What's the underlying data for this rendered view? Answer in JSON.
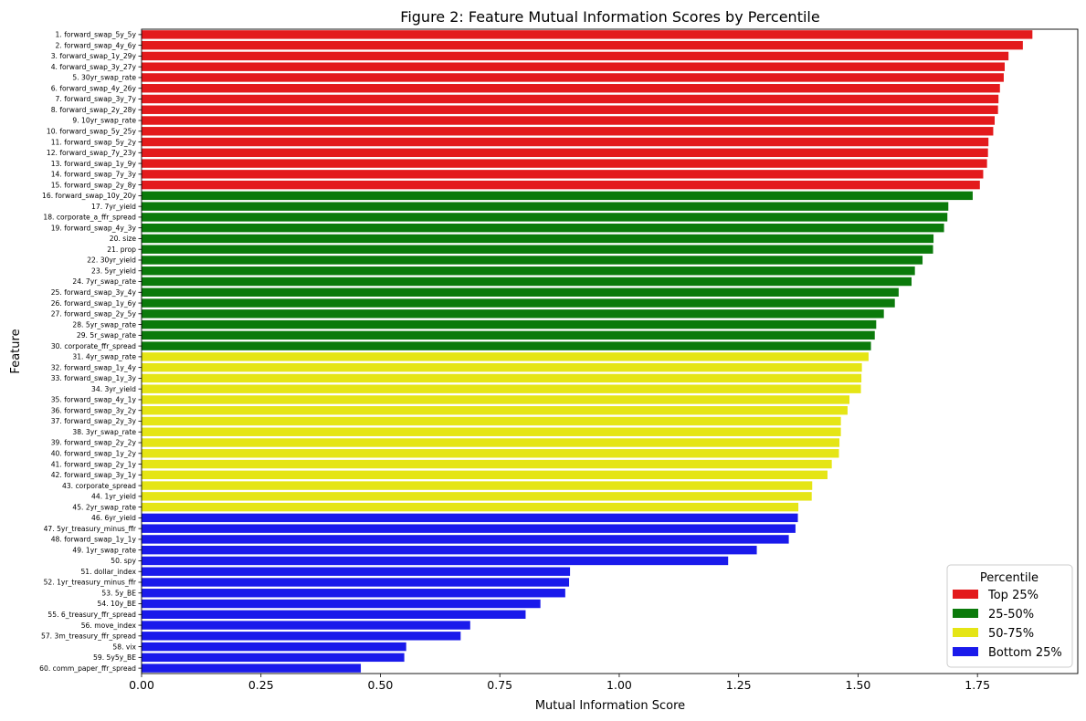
{
  "chart_data": {
    "type": "bar",
    "orientation": "horizontal",
    "title": "Figure 2: Feature Mutual Information Scores by Percentile",
    "xlabel": "Mutual Information Score",
    "ylabel": "Feature",
    "xlim": [
      0,
      1.96
    ],
    "xticks": [
      "0.00",
      "0.25",
      "0.50",
      "0.75",
      "1.00",
      "1.25",
      "1.50",
      "1.75"
    ],
    "grid": false,
    "legend": {
      "title": "Percentile",
      "placement": "bottom-right",
      "entries": [
        {
          "label": "Top 25%",
          "color": "#e31a1c"
        },
        {
          "label": "25-50%",
          "color": "#0b7a0b"
        },
        {
          "label": "50-75%",
          "color": "#e5e515"
        },
        {
          "label": "Bottom 25%",
          "color": "#1a1aeb"
        }
      ]
    },
    "categories": [
      "1. forward_swap_5y_5y",
      "2. forward_swap_4y_6y",
      "3. forward_swap_1y_29y",
      "4. forward_swap_3y_27y",
      "5. 30yr_swap_rate",
      "6. forward_swap_4y_26y",
      "7. forward_swap_3y_7y",
      "8. forward_swap_2y_28y",
      "9. 10yr_swap_rate",
      "10. forward_swap_5y_25y",
      "11. forward_swap_5y_2y",
      "12. forward_swap_7y_23y",
      "13. forward_swap_1y_9y",
      "14. forward_swap_7y_3y",
      "15. forward_swap_2y_8y",
      "16. forward_swap_10y_20y",
      "17. 7yr_yield",
      "18. corporate_a_ffr_spread",
      "19. forward_swap_4y_3y",
      "20. size",
      "21. prop",
      "22. 30yr_yield",
      "23. 5yr_yield",
      "24. 7yr_swap_rate",
      "25. forward_swap_3y_4y",
      "26. forward_swap_1y_6y",
      "27. forward_swap_2y_5y",
      "28. 5yr_swap_rate",
      "29. 5r_swap_rate",
      "30. corporate_ffr_spread",
      "31. 4yr_swap_rate",
      "32. forward_swap_1y_4y",
      "33. forward_swap_1y_3y",
      "34. 3yr_yield",
      "35. forward_swap_4y_1y",
      "36. forward_swap_3y_2y",
      "37. forward_swap_2y_3y",
      "38. 3yr_swap_rate",
      "39. forward_swap_2y_2y",
      "40. forward_swap_1y_2y",
      "41. forward_swap_2y_1y",
      "42. forward_swap_3y_1y",
      "43. corporate_spread",
      "44. 1yr_yield",
      "45. 2yr_swap_rate",
      "46. 6yr_yield",
      "47. 5yr_treasury_minus_ffr",
      "48. forward_swap_1y_1y",
      "49. 1yr_swap_rate",
      "50. spy",
      "51. dollar_index",
      "52. 1yr_treasury_minus_ffr",
      "53. 5y_BE",
      "54. 10y_BE",
      "55. 6_treasury_ffr_spread",
      "56. move_index",
      "57. 3m_treasury_ffr_spread",
      "58. vix",
      "59. 5y5y_BE",
      "60. comm_paper_ffr_spread"
    ],
    "values": [
      1.865,
      1.845,
      1.815,
      1.807,
      1.805,
      1.797,
      1.794,
      1.793,
      1.786,
      1.783,
      1.773,
      1.772,
      1.77,
      1.762,
      1.755,
      1.74,
      1.689,
      1.687,
      1.68,
      1.658,
      1.657,
      1.635,
      1.619,
      1.612,
      1.585,
      1.577,
      1.554,
      1.538,
      1.535,
      1.527,
      1.522,
      1.508,
      1.507,
      1.506,
      1.482,
      1.478,
      1.464,
      1.464,
      1.461,
      1.46,
      1.445,
      1.436,
      1.404,
      1.403,
      1.375,
      1.374,
      1.369,
      1.355,
      1.288,
      1.228,
      0.897,
      0.895,
      0.887,
      0.835,
      0.804,
      0.688,
      0.668,
      0.554,
      0.55,
      0.459
    ],
    "groups": [
      {
        "label": "Top 25%",
        "count": 15
      },
      {
        "label": "25-50%",
        "count": 15
      },
      {
        "label": "50-75%",
        "count": 15
      },
      {
        "label": "Bottom 25%",
        "count": 15
      }
    ]
  }
}
